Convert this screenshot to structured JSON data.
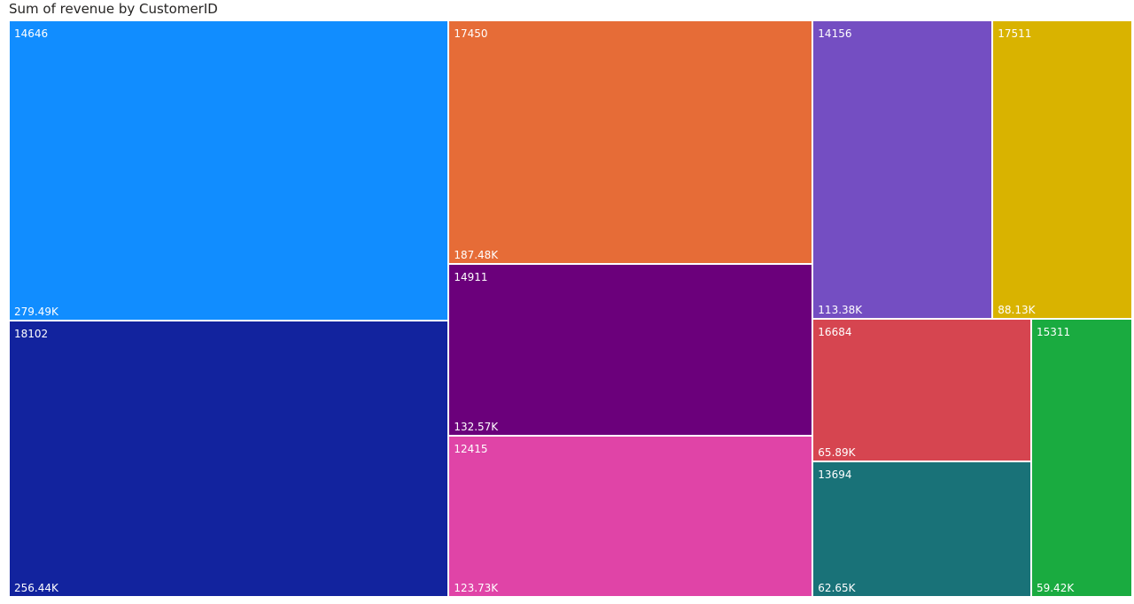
{
  "chart_data": {
    "type": "treemap",
    "title": "Sum of revenue by CustomerID",
    "items": [
      {
        "label": "14646",
        "value": 279.49,
        "value_label": "279.49K",
        "color": "#118DFF"
      },
      {
        "label": "18102",
        "value": 256.44,
        "value_label": "256.44K",
        "color": "#12239E"
      },
      {
        "label": "17450",
        "value": 187.48,
        "value_label": "187.48K",
        "color": "#E66C37"
      },
      {
        "label": "14911",
        "value": 132.57,
        "value_label": "132.57K",
        "color": "#6B007B"
      },
      {
        "label": "12415",
        "value": 123.73,
        "value_label": "123.73K",
        "color": "#E044A7"
      },
      {
        "label": "14156",
        "value": 113.38,
        "value_label": "113.38K",
        "color": "#744EC2"
      },
      {
        "label": "17511",
        "value": 88.13,
        "value_label": "88.13K",
        "color": "#D9B300"
      },
      {
        "label": "16684",
        "value": 65.89,
        "value_label": "65.89K",
        "color": "#D64550"
      },
      {
        "label": "13694",
        "value": 62.65,
        "value_label": "62.65K",
        "color": "#197278"
      },
      {
        "label": "15311",
        "value": 59.42,
        "value_label": "59.42K",
        "color": "#1AAB40"
      }
    ]
  }
}
